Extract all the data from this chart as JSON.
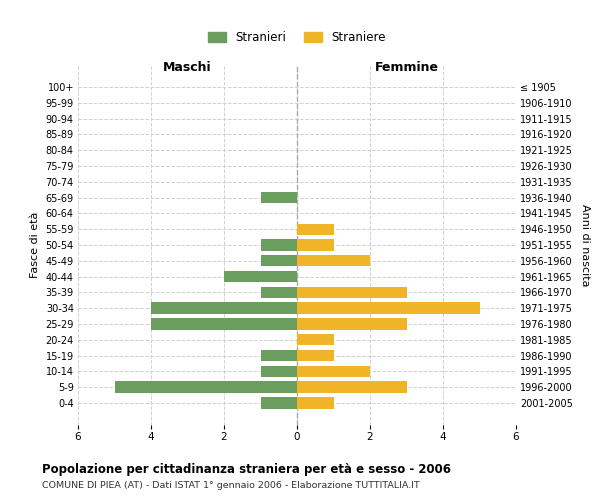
{
  "age_groups": [
    "0-4",
    "5-9",
    "10-14",
    "15-19",
    "20-24",
    "25-29",
    "30-34",
    "35-39",
    "40-44",
    "45-49",
    "50-54",
    "55-59",
    "60-64",
    "65-69",
    "70-74",
    "75-79",
    "80-84",
    "85-89",
    "90-94",
    "95-99",
    "100+"
  ],
  "birth_years": [
    "2001-2005",
    "1996-2000",
    "1991-1995",
    "1986-1990",
    "1981-1985",
    "1976-1980",
    "1971-1975",
    "1966-1970",
    "1961-1965",
    "1956-1960",
    "1951-1955",
    "1946-1950",
    "1941-1945",
    "1936-1940",
    "1931-1935",
    "1926-1930",
    "1921-1925",
    "1916-1920",
    "1911-1915",
    "1906-1910",
    "≤ 1905"
  ],
  "maschi": [
    1,
    5,
    1,
    1,
    0,
    4,
    4,
    1,
    2,
    1,
    1,
    0,
    0,
    1,
    0,
    0,
    0,
    0,
    0,
    0,
    0
  ],
  "femmine": [
    1,
    3,
    2,
    1,
    1,
    3,
    5,
    3,
    0,
    2,
    1,
    1,
    0,
    0,
    0,
    0,
    0,
    0,
    0,
    0,
    0
  ],
  "color_maschi": "#6b9e5e",
  "color_femmine": "#f0b429",
  "title": "Popolazione per cittadinanza straniera per età e sesso - 2006",
  "subtitle": "COMUNE DI PIEA (AT) - Dati ISTAT 1° gennaio 2006 - Elaborazione TUTTITALIA.IT",
  "xlabel_left": "Maschi",
  "xlabel_right": "Femmine",
  "ylabel_left": "Fasce di età",
  "ylabel_right": "Anni di nascita",
  "legend_maschi": "Stranieri",
  "legend_femmine": "Straniere",
  "xlim": 6,
  "background_color": "#ffffff",
  "grid_color": "#d0d0d0"
}
